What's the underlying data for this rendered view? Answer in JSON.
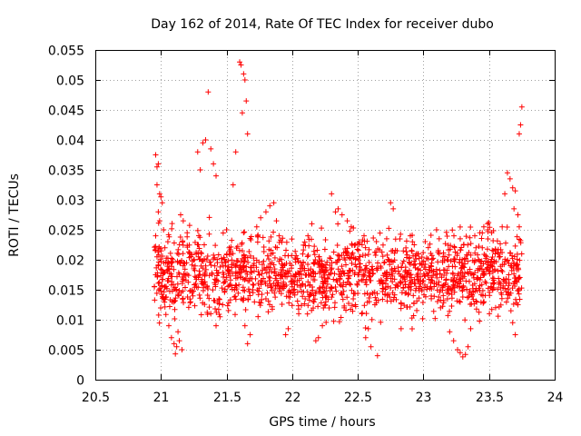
{
  "chart_data": {
    "type": "scatter",
    "title": "Day 162 of 2014, Rate Of TEC Index for receiver dubo",
    "xlabel": "GPS time / hours",
    "ylabel": "ROTI / TECUs",
    "xlim": [
      20.5,
      24
    ],
    "ylim": [
      0,
      0.055
    ],
    "x_ticks": [
      "20.5",
      "21",
      "21.5",
      "22",
      "22.5",
      "23",
      "23.5",
      "24"
    ],
    "y_ticks": [
      "0",
      "0.005",
      "0.01",
      "0.015",
      "0.02",
      "0.025",
      "0.03",
      "0.035",
      "0.04",
      "0.045",
      "0.05",
      "0.055"
    ],
    "grid": true,
    "marker": "+",
    "color": "#ff0000",
    "data_range_x": [
      20.95,
      23.75
    ],
    "typical_y_range": [
      0.004,
      0.03
    ],
    "series": [
      {
        "name": "ROTI",
        "points": [
          [
            20.96,
            0.0375
          ],
          [
            20.97,
            0.0355
          ],
          [
            20.98,
            0.036
          ],
          [
            20.97,
            0.0325
          ],
          [
            20.99,
            0.031
          ],
          [
            21.0,
            0.0305
          ],
          [
            21.01,
            0.0295
          ],
          [
            20.98,
            0.028
          ],
          [
            20.99,
            0.0265
          ],
          [
            21.02,
            0.025
          ],
          [
            20.96,
            0.024
          ],
          [
            21.03,
            0.022
          ],
          [
            20.97,
            0.0205
          ],
          [
            20.98,
            0.019
          ],
          [
            20.96,
            0.0175
          ],
          [
            20.95,
            0.0155
          ],
          [
            21.05,
            0.0165
          ],
          [
            21.06,
            0.009
          ],
          [
            21.08,
            0.007
          ],
          [
            21.1,
            0.006
          ],
          [
            21.12,
            0.0055
          ],
          [
            21.14,
            0.0065
          ],
          [
            21.16,
            0.005
          ],
          [
            21.11,
            0.0043
          ],
          [
            21.13,
            0.008
          ],
          [
            21.15,
            0.0275
          ],
          [
            21.17,
            0.0265
          ],
          [
            21.2,
            0.0245
          ],
          [
            21.22,
            0.021
          ],
          [
            21.25,
            0.0185
          ],
          [
            21.28,
            0.038
          ],
          [
            21.3,
            0.035
          ],
          [
            21.32,
            0.0395
          ],
          [
            21.34,
            0.04
          ],
          [
            21.36,
            0.048
          ],
          [
            21.38,
            0.0385
          ],
          [
            21.4,
            0.036
          ],
          [
            21.42,
            0.034
          ],
          [
            21.33,
            0.0225
          ],
          [
            21.35,
            0.02
          ],
          [
            21.38,
            0.011
          ],
          [
            21.42,
            0.009
          ],
          [
            21.45,
            0.0105
          ],
          [
            21.47,
            0.0125
          ],
          [
            21.5,
            0.025
          ],
          [
            21.52,
            0.022
          ],
          [
            21.55,
            0.0325
          ],
          [
            21.57,
            0.038
          ],
          [
            21.6,
            0.053
          ],
          [
            21.61,
            0.0525
          ],
          [
            21.63,
            0.051
          ],
          [
            21.64,
            0.05
          ],
          [
            21.65,
            0.0465
          ],
          [
            21.66,
            0.041
          ],
          [
            21.62,
            0.0445
          ],
          [
            21.62,
            0.0215
          ],
          [
            21.64,
            0.009
          ],
          [
            21.66,
            0.006
          ],
          [
            21.68,
            0.0075
          ],
          [
            21.7,
            0.015
          ],
          [
            21.73,
            0.0255
          ],
          [
            21.76,
            0.027
          ],
          [
            21.8,
            0.028
          ],
          [
            21.83,
            0.029
          ],
          [
            21.86,
            0.0295
          ],
          [
            21.88,
            0.0265
          ],
          [
            21.9,
            0.024
          ],
          [
            21.93,
            0.019
          ],
          [
            21.95,
            0.0075
          ],
          [
            21.97,
            0.0085
          ],
          [
            22.0,
            0.0155
          ],
          [
            22.03,
            0.0175
          ],
          [
            22.05,
            0.011
          ],
          [
            22.08,
            0.016
          ],
          [
            22.12,
            0.024
          ],
          [
            22.15,
            0.026
          ],
          [
            22.18,
            0.0065
          ],
          [
            22.2,
            0.007
          ],
          [
            22.23,
            0.009
          ],
          [
            22.25,
            0.0145
          ],
          [
            22.28,
            0.0175
          ],
          [
            22.3,
            0.031
          ],
          [
            22.33,
            0.028
          ],
          [
            22.35,
            0.0285
          ],
          [
            22.38,
            0.0275
          ],
          [
            22.42,
            0.0265
          ],
          [
            22.45,
            0.0255
          ],
          [
            22.48,
            0.0225
          ],
          [
            22.5,
            0.0175
          ],
          [
            22.53,
            0.011
          ],
          [
            22.56,
            0.007
          ],
          [
            22.58,
            0.0085
          ],
          [
            22.6,
            0.0055
          ],
          [
            22.63,
            0.0125
          ],
          [
            22.65,
            0.004
          ],
          [
            22.68,
            0.0165
          ],
          [
            22.7,
            0.0195
          ],
          [
            22.72,
            0.0235
          ],
          [
            22.75,
            0.0295
          ],
          [
            22.77,
            0.0285
          ],
          [
            22.8,
            0.0215
          ],
          [
            22.83,
            0.0085
          ],
          [
            22.86,
            0.018
          ],
          [
            22.9,
            0.024
          ],
          [
            22.93,
            0.0225
          ],
          [
            22.96,
            0.0185
          ],
          [
            23.0,
            0.0165
          ],
          [
            23.03,
            0.0155
          ],
          [
            23.06,
            0.0135
          ],
          [
            23.1,
            0.025
          ],
          [
            23.12,
            0.0235
          ],
          [
            23.15,
            0.0205
          ],
          [
            23.18,
            0.0145
          ],
          [
            23.2,
            0.008
          ],
          [
            23.23,
            0.0065
          ],
          [
            23.26,
            0.005
          ],
          [
            23.28,
            0.0045
          ],
          [
            23.3,
            0.0038
          ],
          [
            23.32,
            0.0042
          ],
          [
            23.34,
            0.0055
          ],
          [
            23.36,
            0.0085
          ],
          [
            23.38,
            0.0175
          ],
          [
            23.4,
            0.022
          ],
          [
            23.43,
            0.0245
          ],
          [
            23.46,
            0.0255
          ],
          [
            23.49,
            0.026
          ],
          [
            23.52,
            0.0245
          ],
          [
            23.55,
            0.0215
          ],
          [
            23.58,
            0.0205
          ],
          [
            23.6,
            0.0255
          ],
          [
            23.62,
            0.031
          ],
          [
            23.64,
            0.0345
          ],
          [
            23.66,
            0.0335
          ],
          [
            23.68,
            0.032
          ],
          [
            23.7,
            0.0315
          ],
          [
            23.72,
            0.0275
          ],
          [
            23.73,
            0.0255
          ],
          [
            23.71,
            0.0165
          ],
          [
            23.72,
            0.0125
          ],
          [
            23.74,
            0.0425
          ],
          [
            23.75,
            0.0455
          ],
          [
            23.73,
            0.041
          ],
          [
            23.7,
            0.0075
          ],
          [
            23.68,
            0.0095
          ],
          [
            23.69,
            0.0285
          ]
        ]
      }
    ]
  }
}
